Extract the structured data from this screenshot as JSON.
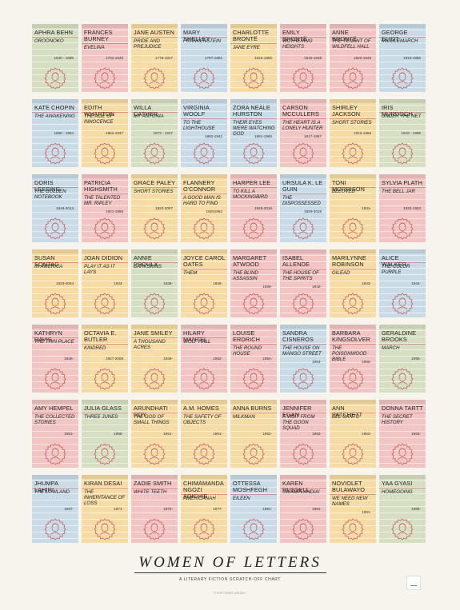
{
  "poster": {
    "title": "WOMEN OF LETTERS",
    "subtitle": "A LITERARY FICTION SCRATCH-OFF CHART",
    "copyright": "© POP CHART LAB 2017"
  },
  "colors": {
    "blue": "#c9dbe6",
    "pink": "#f2c4c4",
    "yellow": "#f6dca4",
    "green": "#d7dfc2",
    "ink": "#c55a5a"
  },
  "cards": [
    {
      "author": "APHRA BEHN",
      "title": "OROONOKO",
      "dates": "1640 - 1689",
      "color": "green"
    },
    {
      "author": "FRANCES BURNEY",
      "title": "EVELINA",
      "dates": "1752-1840",
      "color": "pink"
    },
    {
      "author": "JANE AUSTEN",
      "title": "PRIDE AND PREJUDICE",
      "dates": "1775-1817",
      "color": "yellow"
    },
    {
      "author": "MARY SHELLEY",
      "title": "FRANKENSTEIN",
      "dates": "1797-1851",
      "color": "blue"
    },
    {
      "author": "CHARLOTTE BRONTË",
      "title": "JANE EYRE",
      "dates": "1816-1855",
      "color": "yellow"
    },
    {
      "author": "EMILY BRONTË",
      "title": "WUTHERING HEIGHTS",
      "dates": "1818-1848",
      "color": "pink"
    },
    {
      "author": "ANNE BRONTË",
      "title": "THE TENANT OF WILDFELL HALL",
      "dates": "1820-1849",
      "color": "pink"
    },
    {
      "author": "GEORGE ELIOT",
      "title": "MIDDLEMARCH",
      "dates": "1819-1880",
      "color": "blue"
    },
    {
      "author": "KATE CHOPIN",
      "title": "THE AWAKENING",
      "dates": "1850 - 1904",
      "color": "blue"
    },
    {
      "author": "EDITH WHARTON",
      "title": "THE AGE OF INNOCENCE",
      "dates": "1862-1937",
      "color": "yellow"
    },
    {
      "author": "WILLA CATHER",
      "title": "MY ÁNTONIA",
      "dates": "1873 - 1947",
      "color": "green"
    },
    {
      "author": "VIRGINIA WOOLF",
      "title": "TO THE LIGHTHOUSE",
      "dates": "1882-1941",
      "color": "blue"
    },
    {
      "author": "ZORA NEALE HURSTON",
      "title": "THEIR EYES WERE WATCHING GOD",
      "dates": "1891-1960",
      "color": "blue"
    },
    {
      "author": "CARSON McCULLERS",
      "title": "THE HEART IS A LONELY HUNTER",
      "dates": "1917-1967",
      "color": "pink"
    },
    {
      "author": "SHIRLEY JACKSON",
      "title": "SHORT STORIES",
      "dates": "1916-1965",
      "color": "yellow"
    },
    {
      "author": "IRIS MURDOCH",
      "title": "UNDER THE NET",
      "dates": "1919 - 1999",
      "color": "green"
    },
    {
      "author": "DORIS LESSING",
      "title": "THE GOLDEN NOTEBOOK",
      "dates": "1919-2013",
      "color": "blue"
    },
    {
      "author": "PATRICIA HIGHSMITH",
      "title": "THE TALENTED MR. RIPLEY",
      "dates": "1921-1995",
      "color": "pink"
    },
    {
      "author": "GRACE PALEY",
      "title": "SHORT STORIES",
      "dates": "1922-2007",
      "color": "yellow"
    },
    {
      "author": "FLANNERY O'CONNOR",
      "title": "A GOOD MAN IS HARD TO FIND",
      "dates": "19251964",
      "color": "yellow"
    },
    {
      "author": "HARPER LEE",
      "title": "TO KILL A MOCKINGBIRD",
      "dates": "1926-2016",
      "color": "pink"
    },
    {
      "author": "URSULA K. LE GUIN",
      "title": "THE DISPOSSESSED",
      "dates": "1929-2018",
      "color": "blue"
    },
    {
      "author": "TONI MORRISON",
      "title": "BELOVED",
      "dates": "1931-",
      "color": "yellow"
    },
    {
      "author": "SYLVIA PLATH",
      "title": "THE BELL JAR",
      "dates": "1932-1963",
      "color": "pink"
    },
    {
      "author": "SUSAN SONTAG",
      "title": "IN AMERICA",
      "dates": "1933-2004",
      "color": "yellow"
    },
    {
      "author": "JOAN DIDION",
      "title": "PLAY IT AS IT LAYS",
      "dates": "1934-",
      "color": "yellow"
    },
    {
      "author": "ANNIE PROULX",
      "title": "BARKSKINS",
      "dates": "1935-",
      "color": "green"
    },
    {
      "author": "JOYCE CAROL OATES",
      "title": "THEM",
      "dates": "1938-",
      "color": "yellow"
    },
    {
      "author": "MARGARET ATWOOD",
      "title": "THE BLIND ASSASSIN",
      "dates": "1939-",
      "color": "pink"
    },
    {
      "author": "ISABEL ALLENDE",
      "title": "THE HOUSE OF THE SPIRITS",
      "dates": "1942-",
      "color": "pink"
    },
    {
      "author": "MARILYNNE ROBINSON",
      "title": "GILEAD",
      "dates": "1943-",
      "color": "yellow"
    },
    {
      "author": "ALICE WALKER",
      "title": "THE COLOR PURPLE",
      "dates": "1944-",
      "color": "blue"
    },
    {
      "author": "KATHRYN DAVIS",
      "title": "THE THIN PLACE",
      "dates": "1946-",
      "color": "pink"
    },
    {
      "author": "OCTAVIA E. BUTLER",
      "title": "KINDRED",
      "dates": "1947-2006",
      "color": "yellow"
    },
    {
      "author": "JANE SMILEY",
      "title": "A THOUSAND ACRES",
      "dates": "1949-",
      "color": "yellow"
    },
    {
      "author": "HILARY MANTEL",
      "title": "WOLF HALL",
      "dates": "1952-",
      "color": "pink"
    },
    {
      "author": "LOUISE ERDRICH",
      "title": "THE ROUND HOUSE",
      "dates": "1954-",
      "color": "pink"
    },
    {
      "author": "SANDRA CISNEROS",
      "title": "THE HOUSE ON MANGO STREET",
      "dates": "1954-",
      "color": "blue"
    },
    {
      "author": "BARBARA KINGSOLVER",
      "title": "THE POISONWOOD BIBLE",
      "dates": "1955-",
      "color": "pink"
    },
    {
      "author": "GERALDINE BROOKS",
      "title": "MARCH",
      "dates": "1955-",
      "color": "green"
    },
    {
      "author": "AMY HEMPEL",
      "title": "THE COLLECTED STORIES",
      "dates": "1951-",
      "color": "pink"
    },
    {
      "author": "JULIA GLASS",
      "title": "THREE JUNES",
      "dates": "1956-",
      "color": "green"
    },
    {
      "author": "ARUNDHATI ROY",
      "title": "THE GOD OF SMALL THINGS",
      "dates": "1961-",
      "color": "yellow"
    },
    {
      "author": "A.M. HOMES",
      "title": "THE SAFETY OF OBJECTS",
      "dates": "1961-",
      "color": "yellow"
    },
    {
      "author": "ANNA BURNS",
      "title": "MILKMAN",
      "dates": "1962-",
      "color": "yellow"
    },
    {
      "author": "JENNIFER EGAN",
      "title": "A VISIT FROM THE GOON SQUAD",
      "dates": "1962-",
      "color": "pink"
    },
    {
      "author": "ANN PATCHETT",
      "title": "BEL CANTO",
      "dates": "1963-",
      "color": "yellow"
    },
    {
      "author": "DONNA TARTT",
      "title": "THE SECRET HISTORY",
      "dates": "1963-",
      "color": "pink"
    },
    {
      "author": "JHUMPA LAHIRI",
      "title": "THE LOWLAND",
      "dates": "1967-",
      "color": "blue"
    },
    {
      "author": "KIRAN DESAI",
      "title": "THE INHERITANCE OF LOSS",
      "dates": "1971-",
      "color": "yellow"
    },
    {
      "author": "ZADIE SMITH",
      "title": "WHITE TEETH",
      "dates": "1975-",
      "color": "pink"
    },
    {
      "author": "CHIMAMANDA NGOZI ADICHIE",
      "title": "AMERICANAH",
      "dates": "1977-",
      "color": "yellow"
    },
    {
      "author": "OTTESSA MOSHFEGH",
      "title": "EILEEN",
      "dates": "1981-",
      "color": "blue"
    },
    {
      "author": "KAREN RUSSELL",
      "title": "SWAMPLANDIA!",
      "dates": "1981-",
      "color": "pink"
    },
    {
      "author": "NOVIOLET BULAWAYO",
      "title": "WE NEED NEW NAMES",
      "dates": "1981-",
      "color": "yellow"
    },
    {
      "author": "YAA GYASI",
      "title": "HOMEGOING",
      "dates": "1989-",
      "color": "green"
    }
  ]
}
